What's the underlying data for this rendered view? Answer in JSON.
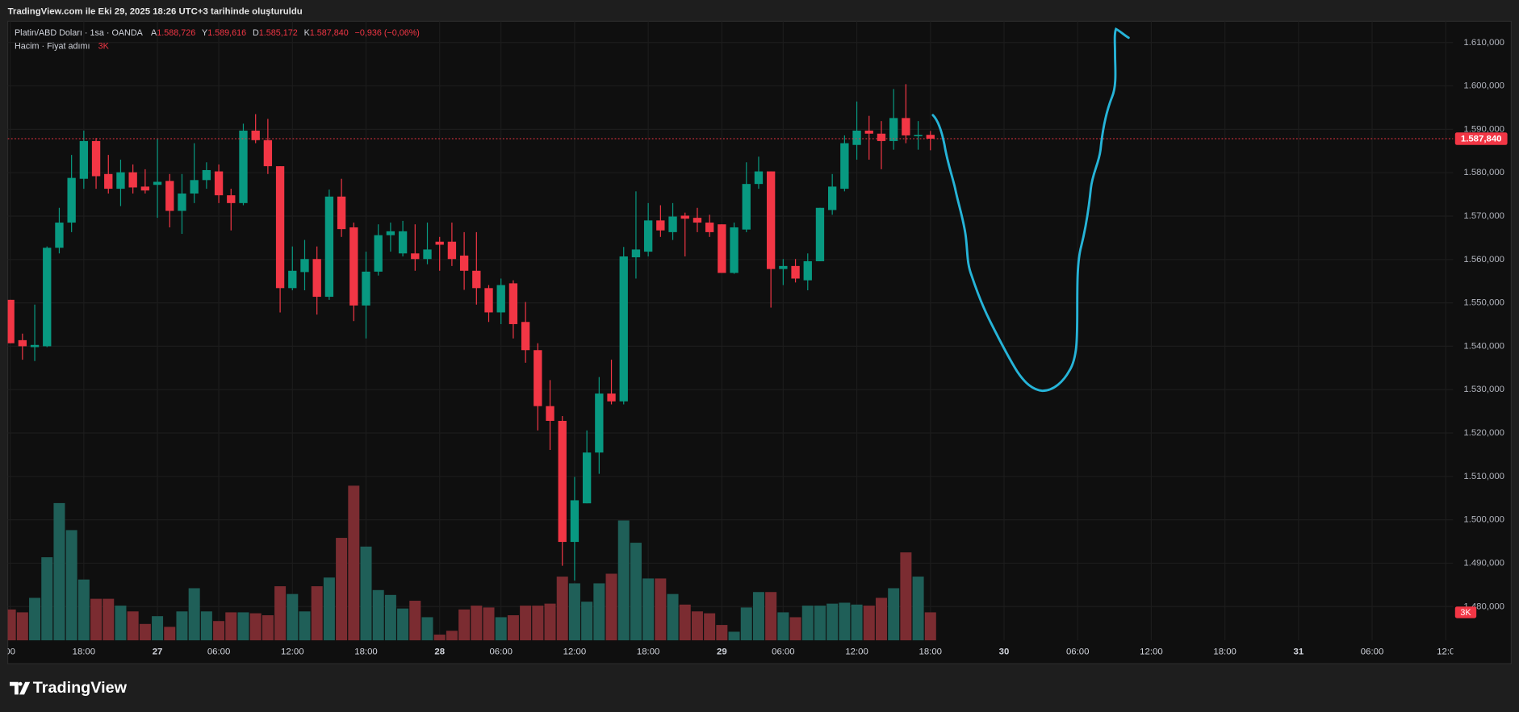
{
  "page": {
    "caption": "TradingView.com ile Eki 29, 2025 18:26 UTC+3 tarihinde oluşturuldu",
    "brand": "TradingView"
  },
  "chart_data": {
    "type": "candlestick",
    "title": "Platin/ABD Doları · 1sa · OANDA",
    "ohlc_legend": [
      {
        "key": "A",
        "label": "1.588,726"
      },
      {
        "key": "Y",
        "label": "1.589,616"
      },
      {
        "key": "D",
        "label": "1.585,172"
      },
      {
        "key": "K",
        "label": "1.587,840"
      }
    ],
    "change_label": "−0,936 (−0,06%)",
    "volume_title": "Hacim · Fiyat adımı",
    "volume_last_label": "3K",
    "last_price": {
      "value": 1587.84,
      "label": "1.587,840"
    },
    "up_color": "#089981",
    "down_color": "#f23645",
    "volume_up_color": "#1f5f58",
    "volume_down_color": "#7b2c31",
    "grid": true,
    "x": [
      0,
      1,
      2,
      3,
      4,
      5,
      6,
      7,
      8,
      9,
      10,
      11,
      12,
      13,
      14,
      15,
      16,
      17,
      18,
      19,
      20,
      21,
      22,
      23,
      24,
      25,
      26,
      27,
      28,
      29,
      30,
      31,
      32,
      33,
      34,
      35,
      36,
      37,
      38,
      39,
      40,
      41,
      42,
      43,
      44,
      45,
      46,
      47,
      48,
      49,
      50,
      51,
      52,
      53,
      54,
      55,
      56,
      57,
      58,
      59,
      60,
      61,
      62,
      63,
      64,
      65,
      66,
      67,
      68,
      69,
      70,
      71,
      72,
      73,
      74,
      75
    ],
    "open": [
      1550.7,
      1541.4,
      1539.8,
      1540.0,
      1562.7,
      1568.5,
      1578.6,
      1587.3,
      1579.7,
      1576.3,
      1580.1,
      1576.8,
      1577.2,
      1578.1,
      1571.2,
      1575.2,
      1578.3,
      1580.3,
      1574.8,
      1573.0,
      1589.7,
      1587.5,
      1581.5,
      1553.4,
      1557.1,
      1560.1,
      1551.4,
      1574.5,
      1567.4,
      1549.4,
      1557.2,
      1565.6,
      1561.4,
      1561.4,
      1560.1,
      1564.1,
      1564.1,
      1560.9,
      1557.4,
      1553.4,
      1547.8,
      1554.5,
      1545.6,
      1539.1,
      1526.2,
      1522.8,
      1494.9,
      1503.8,
      1515.5,
      1529.1,
      1527.3,
      1560.5,
      1561.8,
      1569.0,
      1566.3,
      1570.1,
      1569.6,
      1568.5,
      1568.1,
      1556.9,
      1566.9,
      1577.4,
      1580.3,
      1557.8,
      1558.5,
      1555.2,
      1559.6,
      1571.4,
      1576.3,
      1586.4,
      1589.7,
      1589.0,
      1587.3,
      1592.6,
      1588.4,
      1588.726
    ],
    "high": [
      1550.7,
      1542.9,
      1549.6,
      1563.0,
      1571.9,
      1584.1,
      1589.7,
      1588.0,
      1584.1,
      1583.0,
      1581.9,
      1580.8,
      1587.9,
      1579.7,
      1579.7,
      1586.8,
      1582.4,
      1581.9,
      1576.3,
      1591.3,
      1593.5,
      1592.4,
      1581.5,
      1563.0,
      1564.5,
      1563.0,
      1576.1,
      1578.6,
      1568.5,
      1561.8,
      1568.1,
      1568.5,
      1568.9,
      1568.1,
      1568.5,
      1565.2,
      1568.5,
      1566.3,
      1566.3,
      1554.1,
      1555.6,
      1555.2,
      1550.2,
      1540.7,
      1532.2,
      1523.9,
      1509.9,
      1520.6,
      1532.9,
      1536.9,
      1562.9,
      1575.7,
      1573.0,
      1572.5,
      1573.0,
      1570.8,
      1571.9,
      1570.3,
      1568.1,
      1568.5,
      1582.4,
      1583.7,
      1580.3,
      1560.1,
      1560.1,
      1561.4,
      1571.9,
      1579.7,
      1588.6,
      1596.4,
      1593.1,
      1591.9,
      1599.3,
      1600.4,
      1591.9,
      1589.616
    ],
    "low": [
      1540.7,
      1536.9,
      1536.6,
      1539.8,
      1561.4,
      1566.3,
      1576.3,
      1576.3,
      1575.2,
      1572.3,
      1575.2,
      1575.2,
      1569.6,
      1567.4,
      1565.9,
      1573.0,
      1576.3,
      1573.0,
      1566.7,
      1572.5,
      1586.8,
      1579.7,
      1547.8,
      1552.9,
      1552.9,
      1547.3,
      1550.7,
      1565.2,
      1545.8,
      1541.8,
      1556.3,
      1561.8,
      1560.7,
      1557.4,
      1558.9,
      1557.4,
      1558.5,
      1553.0,
      1549.6,
      1545.6,
      1545.1,
      1541.8,
      1536.2,
      1520.6,
      1516.1,
      1489.4,
      1486.0,
      1503.8,
      1510.6,
      1526.6,
      1526.6,
      1555.6,
      1560.7,
      1565.2,
      1564.5,
      1560.7,
      1566.3,
      1565.2,
      1556.9,
      1556.7,
      1566.3,
      1576.3,
      1548.9,
      1554.1,
      1554.7,
      1552.9,
      1559.6,
      1570.3,
      1575.7,
      1583.0,
      1583.0,
      1580.8,
      1585.3,
      1586.8,
      1585.3,
      1585.172
    ],
    "close": [
      1540.7,
      1540.0,
      1540.3,
      1562.7,
      1568.5,
      1578.8,
      1587.3,
      1579.2,
      1576.3,
      1580.1,
      1576.6,
      1575.9,
      1577.9,
      1571.2,
      1575.2,
      1578.3,
      1580.6,
      1574.8,
      1573.0,
      1589.7,
      1587.5,
      1581.5,
      1553.4,
      1557.4,
      1560.1,
      1551.4,
      1574.5,
      1567.0,
      1549.4,
      1557.2,
      1565.6,
      1566.5,
      1566.5,
      1560.1,
      1562.3,
      1563.4,
      1560.1,
      1557.4,
      1553.4,
      1547.8,
      1554.1,
      1545.1,
      1539.1,
      1526.2,
      1522.8,
      1494.9,
      1504.5,
      1515.5,
      1529.1,
      1527.3,
      1560.7,
      1562.3,
      1569.0,
      1566.7,
      1569.9,
      1569.4,
      1568.5,
      1566.3,
      1556.9,
      1567.4,
      1577.4,
      1580.3,
      1557.8,
      1558.5,
      1555.6,
      1559.6,
      1571.9,
      1576.8,
      1586.8,
      1589.7,
      1589.0,
      1587.3,
      1592.6,
      1588.6,
      1588.7,
      1587.84
    ],
    "volume": [
      3310,
      3000,
      4550,
      8890,
      14680,
      11790,
      6510,
      4450,
      4450,
      3720,
      3100,
      1760,
      2590,
      1450,
      3100,
      5580,
      3100,
      2070,
      3000,
      3000,
      2900,
      2690,
      5790,
      4960,
      3100,
      5790,
      6720,
      10960,
      16540,
      10030,
      5380,
      4860,
      3410,
      4240,
      2480,
      620,
      1030,
      3310,
      3720,
      3520,
      2480,
      2690,
      3720,
      3720,
      3930,
      6820,
      6100,
      4140,
      6100,
      7130,
      12820,
      10440,
      6620,
      6620,
      4960,
      3830,
      3100,
      2900,
      1650,
      930,
      3520,
      5170,
      5170,
      3000,
      2480,
      3720,
      3720,
      3930,
      4030,
      3830,
      3720,
      4550,
      5580,
      9410,
      6820,
      3000
    ],
    "xlim": [
      -0.2,
      117.6
    ],
    "ylim": [
      1472.2,
      1614.9
    ],
    "y2lim": [
      0,
      66180
    ],
    "xticks": [
      {
        "value": 0,
        "label": "00"
      },
      {
        "value": 6,
        "label": "18:00"
      },
      {
        "value": 12,
        "label": "27"
      },
      {
        "value": 17,
        "label": "06:00"
      },
      {
        "value": 23,
        "label": "12:00"
      },
      {
        "value": 29,
        "label": "18:00"
      },
      {
        "value": 35,
        "label": "28"
      },
      {
        "value": 40,
        "label": "06:00"
      },
      {
        "value": 46,
        "label": "12:00"
      },
      {
        "value": 52,
        "label": "18:00"
      },
      {
        "value": 58,
        "label": "29"
      },
      {
        "value": 63,
        "label": "06:00"
      },
      {
        "value": 69,
        "label": "12:00"
      },
      {
        "value": 75,
        "label": "18:00"
      },
      {
        "value": 81,
        "label": "30"
      },
      {
        "value": 87,
        "label": "06:00"
      },
      {
        "value": 93,
        "label": "12:00"
      },
      {
        "value": 99,
        "label": "18:00"
      },
      {
        "value": 105,
        "label": "31"
      },
      {
        "value": 111,
        "label": "06:00"
      },
      {
        "value": 117,
        "label": "12:0"
      }
    ],
    "yticks": [
      {
        "value": 1480,
        "label": "1.480,000"
      },
      {
        "value": 1490,
        "label": "1.490,000"
      },
      {
        "value": 1500,
        "label": "1.500,000"
      },
      {
        "value": 1510,
        "label": "1.510,000"
      },
      {
        "value": 1520,
        "label": "1.520,000"
      },
      {
        "value": 1530,
        "label": "1.530,000"
      },
      {
        "value": 1540,
        "label": "1.540,000"
      },
      {
        "value": 1550,
        "label": "1.550,000"
      },
      {
        "value": 1560,
        "label": "1.560,000"
      },
      {
        "value": 1570,
        "label": "1.570,000"
      },
      {
        "value": 1580,
        "label": "1.580,000"
      },
      {
        "value": 1590,
        "label": "1.590,000"
      },
      {
        "value": 1600,
        "label": "1.600,000"
      },
      {
        "value": 1610,
        "label": "1.610,000"
      }
    ]
  }
}
